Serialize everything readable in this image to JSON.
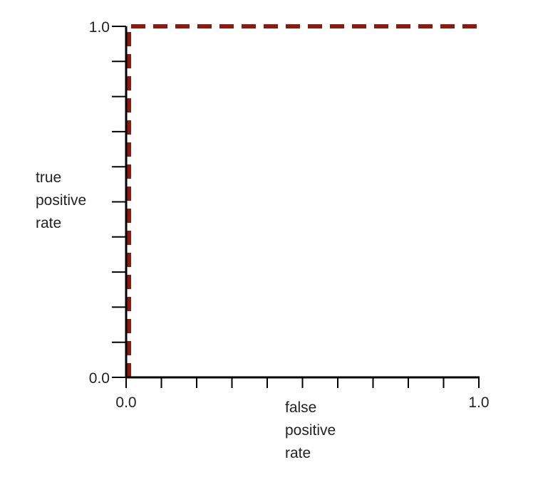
{
  "chart_data": {
    "type": "line",
    "title": "",
    "xlabel": "false\npositive\nrate",
    "ylabel": "true\npositive\nrate",
    "xlim": [
      0.0,
      1.0
    ],
    "ylim": [
      0.0,
      1.0
    ],
    "x_tick_labels": [
      "0.0",
      "1.0"
    ],
    "y_tick_labels": [
      "0.0",
      "1.0"
    ],
    "minor_tick_step": 0.1,
    "grid": false,
    "legend": "none",
    "series": [
      {
        "style": "dashed",
        "color": "#8b1a10",
        "x": [
          0.0,
          0.0,
          1.0
        ],
        "y": [
          0.0,
          1.0,
          1.0
        ]
      }
    ]
  }
}
